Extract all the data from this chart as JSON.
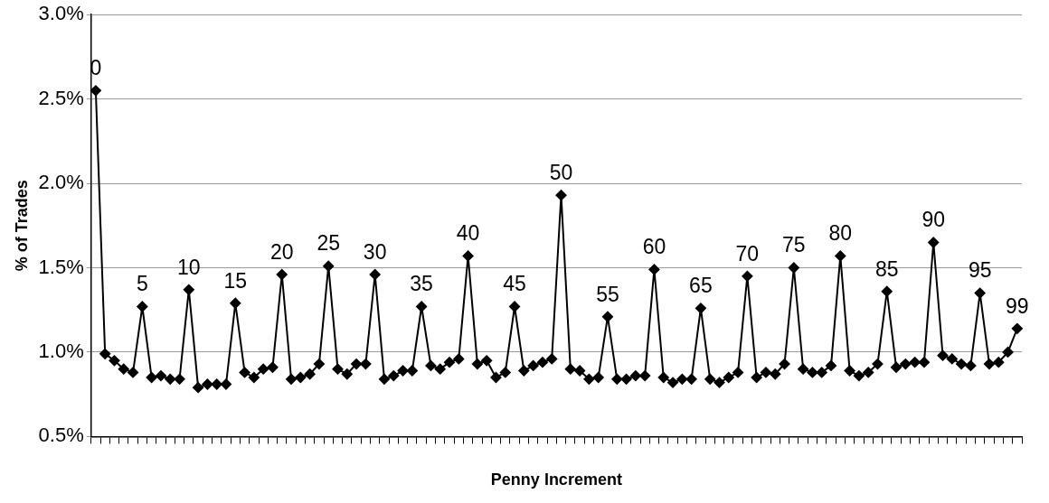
{
  "chart_data": {
    "type": "line",
    "xlabel": "Penny Increment",
    "ylabel": "% of Trades",
    "categories": [
      "0",
      null,
      null,
      null,
      null,
      "5",
      null,
      null,
      null,
      null,
      "10",
      null,
      null,
      null,
      null,
      "15",
      null,
      null,
      null,
      null,
      "20",
      null,
      null,
      null,
      null,
      "25",
      null,
      null,
      null,
      null,
      "30",
      null,
      null,
      null,
      null,
      "35",
      null,
      null,
      null,
      null,
      "40",
      null,
      null,
      null,
      null,
      "45",
      null,
      null,
      null,
      null,
      "50",
      null,
      null,
      null,
      null,
      "55",
      null,
      null,
      null,
      null,
      "60",
      null,
      null,
      null,
      null,
      "65",
      null,
      null,
      null,
      null,
      "70",
      null,
      null,
      null,
      null,
      "75",
      null,
      null,
      null,
      null,
      "80",
      null,
      null,
      null,
      null,
      "85",
      null,
      null,
      null,
      null,
      "90",
      null,
      null,
      null,
      null,
      "95",
      null,
      null,
      null,
      "99"
    ],
    "series": [
      {
        "color": "#000000",
        "values": [
          2.55,
          0.99,
          0.95,
          0.9,
          0.88,
          1.27,
          0.85,
          0.86,
          0.84,
          0.84,
          1.37,
          0.79,
          0.81,
          0.81,
          0.81,
          1.29,
          0.88,
          0.85,
          0.9,
          0.91,
          1.46,
          0.84,
          0.85,
          0.87,
          0.93,
          1.51,
          0.9,
          0.87,
          0.93,
          0.93,
          1.46,
          0.84,
          0.86,
          0.89,
          0.89,
          1.27,
          0.92,
          0.9,
          0.94,
          0.96,
          1.57,
          0.93,
          0.95,
          0.85,
          0.88,
          1.27,
          0.89,
          0.92,
          0.94,
          0.96,
          1.93,
          0.9,
          0.89,
          0.84,
          0.85,
          1.21,
          0.84,
          0.84,
          0.86,
          0.86,
          1.49,
          0.85,
          0.82,
          0.84,
          0.84,
          1.26,
          0.84,
          0.82,
          0.85,
          0.88,
          1.45,
          0.85,
          0.88,
          0.87,
          0.93,
          1.5,
          0.9,
          0.88,
          0.88,
          0.92,
          1.57,
          0.89,
          0.86,
          0.88,
          0.93,
          1.36,
          0.91,
          0.93,
          0.94,
          0.94,
          1.65,
          0.98,
          0.96,
          0.93,
          0.92,
          1.35,
          0.93,
          0.94,
          1.0,
          1.14
        ]
      }
    ],
    "ylim": [
      0.5,
      3.0
    ],
    "yticks": [
      {
        "value": 0.5,
        "label": "0.5%"
      },
      {
        "value": 1.0,
        "label": "1.0%"
      },
      {
        "value": 1.5,
        "label": "1.5%"
      },
      {
        "value": 2.0,
        "label": "2.0%"
      },
      {
        "value": 2.5,
        "label": "2.5%"
      },
      {
        "value": 3.0,
        "label": "3.0%"
      }
    ],
    "grid": "y",
    "marker": "diamond",
    "line_style": "solid"
  }
}
